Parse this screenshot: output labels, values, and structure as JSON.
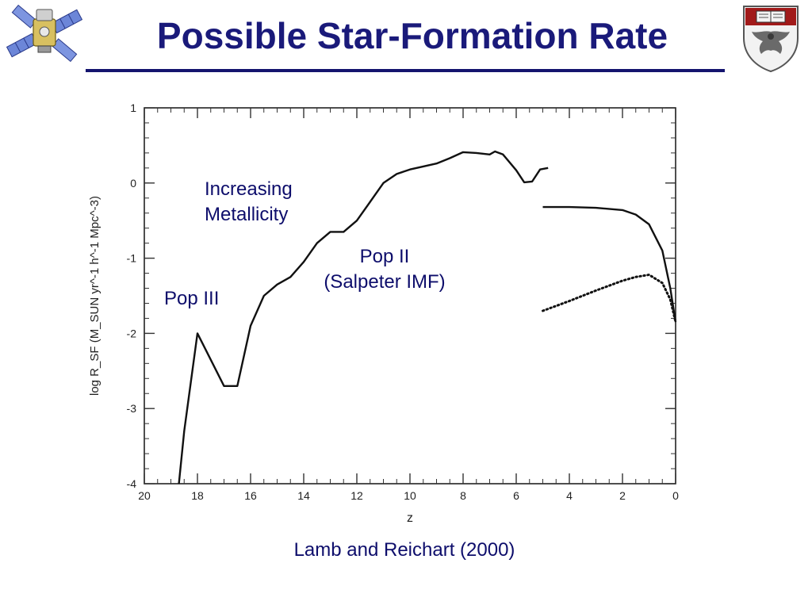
{
  "slide": {
    "title": "Possible Star-Formation Rate",
    "caption": "Lamb and Reichart (2000)"
  },
  "colors": {
    "title": "#1a1a7a",
    "annotation": "#0d0d6b",
    "rule": "#14146e",
    "curve": "#111111",
    "crest_red": "#a11a1a"
  },
  "icons": {
    "left_logo": "satellite-icon",
    "right_logo": "university-crest-icon"
  },
  "annotations": {
    "increasing_line1": "Increasing",
    "increasing_line2": "Metallicity",
    "pop2_line1": "Pop II",
    "pop2_line2": "(Salpeter IMF)",
    "pop3": "Pop III"
  },
  "chart_data": {
    "type": "line",
    "xlabel": "z",
    "ylabel": "log R_SF (M_SUN yr^-1 h^-1 Mpc^-3)",
    "xlim": [
      20,
      0
    ],
    "ylim": [
      -4,
      1
    ],
    "x_reversed": true,
    "xticks": [
      20,
      18,
      16,
      14,
      12,
      10,
      8,
      6,
      4,
      2,
      0
    ],
    "yticks": [
      1,
      0,
      -1,
      -2,
      -3,
      -4
    ],
    "x_minor_step": 0.5,
    "y_minor_step": 0.2,
    "grid": false,
    "series": [
      {
        "style": "solid",
        "points": [
          [
            18.7,
            -4.0
          ],
          [
            18.5,
            -3.3
          ],
          [
            18.0,
            -2.0
          ],
          [
            17.0,
            -2.7
          ],
          [
            16.5,
            -2.7
          ],
          [
            16.0,
            -1.9
          ],
          [
            15.5,
            -1.5
          ],
          [
            15.0,
            -1.35
          ],
          [
            14.5,
            -1.25
          ],
          [
            14.0,
            -1.05
          ],
          [
            13.5,
            -0.8
          ],
          [
            13.0,
            -0.65
          ],
          [
            12.5,
            -0.65
          ],
          [
            12.0,
            -0.5
          ],
          [
            11.5,
            -0.25
          ],
          [
            11.0,
            0.0
          ],
          [
            10.5,
            0.12
          ],
          [
            10.0,
            0.18
          ],
          [
            9.5,
            0.22
          ],
          [
            9.0,
            0.26
          ],
          [
            8.5,
            0.33
          ],
          [
            8.0,
            0.41
          ],
          [
            7.5,
            0.4
          ],
          [
            7.0,
            0.38
          ],
          [
            6.8,
            0.42
          ],
          [
            6.5,
            0.38
          ],
          [
            6.0,
            0.17
          ],
          [
            5.7,
            0.01
          ],
          [
            5.4,
            0.02
          ],
          [
            5.1,
            0.18
          ],
          [
            4.8,
            0.2
          ]
        ]
      },
      {
        "style": "solid",
        "points": [
          [
            5.0,
            -0.32
          ],
          [
            4.0,
            -0.32
          ],
          [
            3.0,
            -0.33
          ],
          [
            2.0,
            -0.36
          ],
          [
            1.5,
            -0.42
          ],
          [
            1.0,
            -0.55
          ],
          [
            0.5,
            -0.9
          ],
          [
            0.2,
            -1.4
          ],
          [
            0.0,
            -1.85
          ]
        ]
      },
      {
        "style": "dotted",
        "points": [
          [
            5.0,
            -1.7
          ],
          [
            4.0,
            -1.57
          ],
          [
            3.0,
            -1.43
          ],
          [
            2.0,
            -1.3
          ],
          [
            1.5,
            -1.25
          ],
          [
            1.0,
            -1.22
          ],
          [
            0.5,
            -1.33
          ],
          [
            0.2,
            -1.55
          ],
          [
            0.0,
            -1.85
          ]
        ]
      }
    ]
  }
}
